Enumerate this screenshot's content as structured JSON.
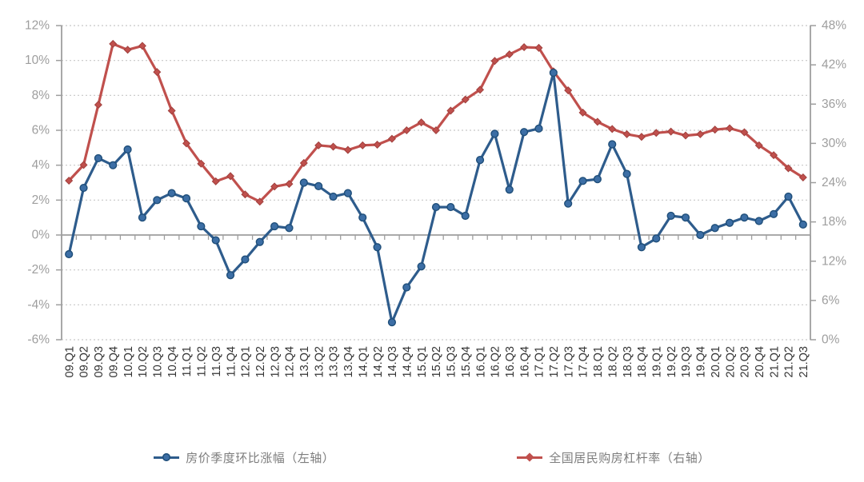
{
  "page": {
    "background": "#ffffff"
  },
  "chart_data": {
    "type": "line",
    "categories": [
      "09.Q1",
      "09.Q2",
      "09.Q3",
      "09.Q4",
      "10.Q1",
      "10.Q2",
      "10.Q3",
      "10.Q4",
      "11.Q1",
      "11.Q2",
      "11.Q3",
      "11.Q4",
      "12.Q1",
      "12.Q2",
      "12.Q3",
      "12.Q4",
      "13.Q1",
      "13.Q2",
      "13.Q3",
      "13.Q4",
      "14.Q1",
      "14.Q2",
      "14.Q3",
      "14.Q4",
      "15.Q1",
      "15.Q2",
      "15.Q3",
      "15.Q4",
      "16.Q1",
      "16.Q2",
      "16.Q3",
      "16.Q4",
      "17.Q1",
      "17.Q2",
      "17.Q3",
      "17.Q4",
      "18.Q1",
      "18.Q2",
      "18.Q3",
      "18.Q4",
      "19.Q1",
      "19.Q2",
      "19.Q3",
      "19.Q4",
      "20.Q1",
      "20.Q2",
      "20.Q3",
      "20.Q4",
      "21.Q1",
      "21.Q2",
      "21.Q3"
    ],
    "series": [
      {
        "name": "房价季度环比涨幅（左轴）",
        "axis": "left",
        "color": "#2E5C8C",
        "marker": "circle",
        "marker_fill": "#3C6EA5",
        "marker_stroke": "#1F4E79",
        "values": [
          -1.1,
          2.7,
          4.4,
          4.0,
          4.9,
          1.0,
          2.0,
          2.4,
          2.1,
          0.5,
          -0.3,
          -2.3,
          -1.4,
          -0.4,
          0.5,
          0.4,
          3.0,
          2.8,
          2.2,
          2.4,
          1.0,
          -0.7,
          -5.0,
          -3.0,
          -1.8,
          1.6,
          1.6,
          1.1,
          4.3,
          5.8,
          2.6,
          5.9,
          6.1,
          9.3,
          1.8,
          3.1,
          3.2,
          5.2,
          3.5,
          -0.7,
          -0.2,
          1.1,
          1.0,
          0.0,
          0.4,
          0.7,
          1.0,
          0.8,
          1.2,
          2.2,
          0.6
        ]
      },
      {
        "name": "全国居民购房杠杆率（右轴）",
        "axis": "right",
        "color": "#C0504D",
        "marker": "diamond",
        "marker_fill": "#C0504D",
        "marker_stroke": "#A0403D",
        "values": [
          24.3,
          26.7,
          35.9,
          45.2,
          44.3,
          44.9,
          40.9,
          35.0,
          30.0,
          26.9,
          24.2,
          25.0,
          22.2,
          21.1,
          23.4,
          23.8,
          27.0,
          29.7,
          29.5,
          29.0,
          29.7,
          29.8,
          30.7,
          32.0,
          33.2,
          32.0,
          35.0,
          36.7,
          38.2,
          42.6,
          43.6,
          44.7,
          44.6,
          41.0,
          38.1,
          34.7,
          33.3,
          32.2,
          31.4,
          31.0,
          31.6,
          31.8,
          31.2,
          31.4,
          32.1,
          32.3,
          31.7,
          29.7,
          28.2,
          26.2,
          24.8
        ]
      }
    ],
    "left_axis": {
      "min": -6,
      "max": 12,
      "step": 2,
      "tick_labels": [
        "12%",
        "10%",
        "8%",
        "6%",
        "4%",
        "2%",
        "0%",
        "-2%",
        "-4%",
        "-6%"
      ]
    },
    "right_axis": {
      "min": 0,
      "max": 48,
      "step": 6,
      "tick_labels": [
        "48%",
        "42%",
        "36%",
        "30%",
        "24%",
        "18%",
        "12%",
        "6%",
        "0%"
      ]
    },
    "title": "",
    "xlabel": "",
    "ylabel": "",
    "grid": "horizontal-dotted",
    "x_tick_label_rotation": -90,
    "legend_position": "bottom",
    "style": {
      "grid_color": "#C8C8C8",
      "axis_color": "#9E9E9E",
      "zero_line_color": "#9E9E9E",
      "y_tick_label_color": "#9E9E9E",
      "x_tick_label_color": "#333333",
      "legend_text_color": "#7d7d7d"
    }
  }
}
